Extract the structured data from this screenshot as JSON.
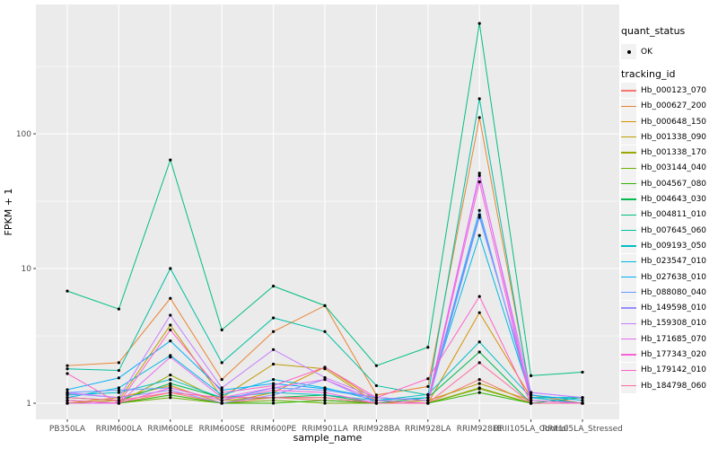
{
  "figure": {
    "background": "#FFFFFF",
    "panel_background": "#EBEBEB",
    "grid_color": "#FFFFFF",
    "tick_text_color": "#4D4D4D",
    "title_text_color": "#000000",
    "point_color": "#000000",
    "legend_key_background": "#F2F2F2"
  },
  "legend": {
    "quant_status": {
      "title": "quant_status",
      "items": [
        "OK"
      ]
    },
    "tracking": {
      "title": "tracking_id"
    }
  },
  "chart_data": {
    "type": "line",
    "title": "",
    "xlabel": "sample_name",
    "ylabel": "FPKM + 1",
    "x_scale": "categorical",
    "y_scale": "log10",
    "y_ticks": [
      1,
      10,
      100
    ],
    "y_minor_ticks": [
      3.16,
      31.6,
      316
    ],
    "ylim": [
      0.76,
      840
    ],
    "grid": true,
    "legend_position": "right",
    "point_marker": "black-dot",
    "categories": [
      "PB350LA",
      "RRIM600LA",
      "RRIM600LE",
      "RRIM600SE",
      "RRIM600PE",
      "RRIM901LA",
      "RRIM928BA",
      "RRIM928LA",
      "RRIM928LE",
      "RRII105LA_Control",
      "RRII105LA_Stressed"
    ],
    "series": [
      {
        "name": "Hb_000123_070",
        "color": "#F8766D",
        "quant_status": "OK",
        "values": [
          1.05,
          1,
          1.2,
          1,
          1.1,
          1.05,
          1,
          1,
          1.5,
          1,
          1
        ]
      },
      {
        "name": "Hb_000627_200",
        "color": "#EA8331",
        "quant_status": "OK",
        "values": [
          1.9,
          2,
          6,
          1.5,
          3.4,
          5.3,
          1.15,
          1.33,
          132,
          1.15,
          1
        ]
      },
      {
        "name": "Hb_000648_150",
        "color": "#D89000",
        "quant_status": "OK",
        "values": [
          1,
          1.1,
          1.35,
          1,
          1.2,
          1.85,
          1.05,
          1,
          4.7,
          1.1,
          1
        ]
      },
      {
        "name": "Hb_001338_090",
        "color": "#BE9C00",
        "quant_status": "OK",
        "values": [
          1,
          1.05,
          3.8,
          1.1,
          1.95,
          1.8,
          1,
          1.05,
          1.4,
          1.05,
          1
        ]
      },
      {
        "name": "Hb_001338_170",
        "color": "#9CA700",
        "quant_status": "OK",
        "values": [
          1.05,
          1,
          1.62,
          1.05,
          1.1,
          1.1,
          1,
          1,
          1.3,
          1,
          1
        ]
      },
      {
        "name": "Hb_003144_040",
        "color": "#6FB000",
        "quant_status": "OK",
        "values": [
          1,
          1,
          1.1,
          1,
          1.05,
          1,
          1,
          1,
          1.28,
          1,
          1
        ]
      },
      {
        "name": "Hb_004567_080",
        "color": "#2DB600",
        "quant_status": "OK",
        "values": [
          1,
          1,
          1.15,
          1,
          1,
          1.05,
          1,
          1,
          1.2,
          1,
          1
        ]
      },
      {
        "name": "Hb_004643_030",
        "color": "#00BB4E",
        "quant_status": "OK",
        "values": [
          1.1,
          1.05,
          1.4,
          1.1,
          1.1,
          1.15,
          1,
          1.1,
          2.4,
          1,
          1.1
        ]
      },
      {
        "name": "Hb_004811_010",
        "color": "#00BF7D",
        "quant_status": "OK",
        "values": [
          6.8,
          5,
          64,
          3.5,
          7.4,
          5.3,
          1.9,
          2.6,
          660,
          1.6,
          1.7
        ]
      },
      {
        "name": "Hb_007645_060",
        "color": "#00C0A2",
        "quant_status": "OK",
        "values": [
          1.8,
          1.75,
          10,
          2,
          4.3,
          3.4,
          1.35,
          1.15,
          182,
          1.1,
          1.1
        ]
      },
      {
        "name": "Hb_009193_050",
        "color": "#00BFC4",
        "quant_status": "OK",
        "values": [
          1.15,
          1.2,
          1.5,
          1.1,
          1.2,
          1.15,
          1.05,
          1.16,
          2.85,
          1.1,
          1.1
        ]
      },
      {
        "name": "Hb_023547_010",
        "color": "#00B9E3",
        "quant_status": "OK",
        "values": [
          1.1,
          1.3,
          2.26,
          1.15,
          1.5,
          1.3,
          1.05,
          1.1,
          17.6,
          1.1,
          1
        ]
      },
      {
        "name": "Hb_027638_010",
        "color": "#00AEFA",
        "quant_status": "OK",
        "values": [
          1.26,
          1.54,
          2.9,
          1.25,
          1.4,
          1.28,
          1.1,
          1.05,
          25,
          1.15,
          1.05
        ]
      },
      {
        "name": "Hb_088080_040",
        "color": "#619CFF",
        "quant_status": "OK",
        "values": [
          1.2,
          1.25,
          1.3,
          1.05,
          1.3,
          1.25,
          1.1,
          1.05,
          27,
          1.05,
          1
        ]
      },
      {
        "name": "Hb_149598_010",
        "color": "#9590FF",
        "quant_status": "OK",
        "values": [
          1.18,
          1.1,
          1.25,
          1,
          1.15,
          1.5,
          1,
          1,
          24,
          1.2,
          1.1
        ]
      },
      {
        "name": "Hb_159308_010",
        "color": "#C77CFF",
        "quant_status": "OK",
        "values": [
          1.2,
          1.1,
          4.5,
          1.3,
          2.5,
          1.55,
          1.1,
          1.05,
          49,
          1.2,
          1.1
        ]
      },
      {
        "name": "Hb_171685_070",
        "color": "#E76BF3",
        "quant_status": "OK",
        "values": [
          1,
          1,
          2.2,
          1.1,
          1.3,
          1.5,
          1.05,
          1,
          51,
          1.05,
          1
        ]
      },
      {
        "name": "Hb_177343_020",
        "color": "#FA62DB",
        "quant_status": "OK",
        "values": [
          1.05,
          1,
          1.3,
          1.05,
          1.25,
          1.2,
          1,
          1,
          44,
          1,
          1
        ]
      },
      {
        "name": "Hb_179142_010",
        "color": "#FF61C7",
        "quant_status": "OK",
        "values": [
          1.66,
          1,
          3.5,
          1.2,
          1.35,
          1.85,
          1.1,
          1.52,
          6.2,
          1,
          1
        ]
      },
      {
        "name": "Hb_184798_060",
        "color": "#FF689E",
        "quant_status": "OK",
        "values": [
          1.1,
          1.05,
          1.2,
          1.1,
          1.1,
          1.1,
          1,
          1,
          2,
          1,
          1
        ]
      }
    ]
  }
}
